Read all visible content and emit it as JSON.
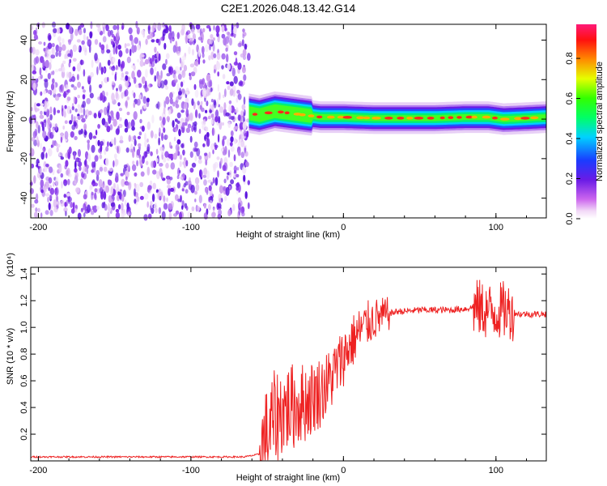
{
  "title": "C2E1.2026.048.13.42.G14",
  "chart_data": [
    {
      "type": "heatmap",
      "xlabel": "Height of straight line (km)",
      "ylabel": "Frequency (Hz)",
      "xlim": [
        -205,
        133
      ],
      "ylim": [
        -50,
        48
      ],
      "xticks": [
        -200,
        -100,
        0,
        100
      ],
      "yticks": [
        -40,
        -20,
        0,
        20,
        40
      ],
      "colorbar": {
        "label": "Normalized spectral amplitude",
        "range": [
          0,
          0.97
        ],
        "ticks": [
          "0.0",
          "0.2",
          "0.4",
          "0.6",
          "0.8"
        ],
        "colormap": "rainbow (magenta-blue-cyan-green-yellow-red)"
      },
      "noise_region_x": [
        -205,
        -62
      ],
      "signal_region_x": [
        -62,
        133
      ],
      "ridge_frequency": [
        [
          -62,
          3
        ],
        [
          -55,
          2
        ],
        [
          -45,
          4
        ],
        [
          -35,
          3
        ],
        [
          -25,
          2
        ],
        [
          -15,
          1
        ],
        [
          0,
          1
        ],
        [
          20,
          0.5
        ],
        [
          40,
          0.5
        ],
        [
          60,
          0.5
        ],
        [
          80,
          1
        ],
        [
          95,
          1
        ],
        [
          105,
          0
        ],
        [
          120,
          0.5
        ],
        [
          133,
          1
        ]
      ],
      "grid": false
    },
    {
      "type": "line",
      "xlabel": "Height of straight line (km)",
      "ylabel": "SNR (10 * v/v)",
      "y_multiplier": "(x10⁴)",
      "xlim": [
        -205,
        133
      ],
      "ylim": [
        0,
        1.45
      ],
      "xticks": [
        -200,
        -100,
        0,
        100
      ],
      "yticks": [
        0.2,
        0.4,
        0.6,
        0.8,
        1.0,
        1.2,
        1.4
      ],
      "series": [
        {
          "color": "#ee2222",
          "x": [
            -205,
            -190,
            -170,
            -150,
            -130,
            -110,
            -90,
            -75,
            -65,
            -55,
            -50,
            -45,
            -40,
            -35,
            -30,
            -25,
            -20,
            -15,
            -10,
            -5,
            0,
            5,
            10,
            15,
            20,
            25,
            30,
            35,
            40,
            50,
            60,
            70,
            80,
            85,
            90,
            95,
            100,
            105,
            110,
            115,
            120,
            125,
            133
          ],
          "y": [
            0.03,
            0.03,
            0.03,
            0.03,
            0.03,
            0.03,
            0.03,
            0.03,
            0.03,
            0.05,
            0.18,
            0.32,
            0.38,
            0.4,
            0.42,
            0.44,
            0.48,
            0.52,
            0.58,
            0.68,
            0.78,
            0.88,
            0.96,
            1.02,
            1.06,
            1.08,
            1.1,
            1.12,
            1.12,
            1.13,
            1.13,
            1.13,
            1.14,
            1.15,
            1.14,
            1.12,
            1.12,
            1.13,
            1.12,
            1.1,
            1.1,
            1.1,
            1.1
          ]
        }
      ],
      "grid": false
    }
  ]
}
